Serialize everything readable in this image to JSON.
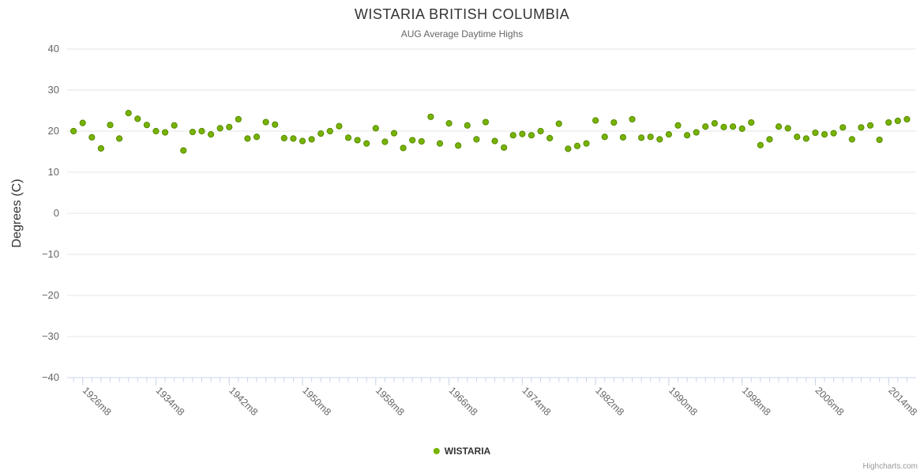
{
  "chart": {
    "title": "WISTARIA BRITISH COLUMBIA",
    "subtitle": "AUG Average Daytime Highs",
    "credit": "Highcharts.com"
  },
  "legend": {
    "label": "WISTARIA"
  },
  "chart_data": {
    "type": "scatter",
    "title": "WISTARIA BRITISH COLUMBIA",
    "subtitle": "AUG Average Daytime Highs",
    "xlabel": "",
    "ylabel": "Degrees (C)",
    "ylim": [
      -40,
      40
    ],
    "xlim": [
      1924.3,
      2017
    ],
    "grid": true,
    "legend_position": "bottom",
    "yticks": [
      40,
      30,
      20,
      10,
      0,
      -10,
      -20,
      -30,
      -40
    ],
    "ytick_labels": [
      "40",
      "30",
      "20",
      "10",
      "0",
      "−10",
      "−20",
      "−30",
      "−40"
    ],
    "xticks": [
      1926,
      1934,
      1942,
      1950,
      1958,
      1966,
      1974,
      1982,
      1990,
      1998,
      2006,
      2014
    ],
    "xtick_labels": [
      "1926m8",
      "1934m8",
      "1942m8",
      "1950m8",
      "1958m8",
      "1966m8",
      "1974m8",
      "1982m8",
      "1990m8",
      "1998m8",
      "2006m8",
      "2014m8"
    ],
    "colors": {
      "point": "#77b300",
      "point_stroke": "#568a00",
      "grid": "#e6e6e6",
      "axis": "#ccd6eb",
      "tick_label": "#666666"
    },
    "series": [
      {
        "name": "WISTARIA",
        "color": "#77b300",
        "x": [
          1925,
          1926,
          1927,
          1928,
          1929,
          1930,
          1931,
          1932,
          1933,
          1934,
          1935,
          1936,
          1937,
          1938,
          1939,
          1940,
          1941,
          1942,
          1943,
          1944,
          1945,
          1946,
          1947,
          1948,
          1949,
          1950,
          1951,
          1952,
          1953,
          1954,
          1955,
          1956,
          1957,
          1958,
          1959,
          1960,
          1961,
          1962,
          1963,
          1964,
          1965,
          1966,
          1967,
          1968,
          1969,
          1970,
          1971,
          1972,
          1973,
          1974,
          1975,
          1976,
          1977,
          1978,
          1979,
          1980,
          1981,
          1982,
          1983,
          1984,
          1985,
          1986,
          1987,
          1988,
          1989,
          1990,
          1991,
          1992,
          1993,
          1994,
          1995,
          1996,
          1997,
          1998,
          1999,
          2000,
          2001,
          2002,
          2003,
          2004,
          2005,
          2006,
          2007,
          2008,
          2009,
          2010,
          2011,
          2012,
          2013,
          2014,
          2015,
          2016
        ],
        "y": [
          20.0,
          22.0,
          18.5,
          15.8,
          21.5,
          18.2,
          24.4,
          23.0,
          21.5,
          20.0,
          19.7,
          21.4,
          15.3,
          19.8,
          20.0,
          19.2,
          20.7,
          21.0,
          22.9,
          18.2,
          18.6,
          22.2,
          21.6,
          18.3,
          18.2,
          17.6,
          18.0,
          19.4,
          20.0,
          21.2,
          18.4,
          17.8,
          17.0,
          20.7,
          17.4,
          19.5,
          15.9,
          17.8,
          17.5,
          23.5,
          17.0,
          21.9,
          16.5,
          21.4,
          18.0,
          22.2,
          17.6,
          16.0,
          19.0,
          19.3,
          19.0,
          20.0,
          18.3,
          21.8,
          15.7,
          16.4,
          17.0,
          22.6,
          18.6,
          22.1,
          18.5,
          22.9,
          18.4,
          18.6,
          18.0,
          19.2,
          21.4,
          19.0,
          19.7,
          21.1,
          21.9,
          21.0,
          21.1,
          20.6,
          22.1,
          16.6,
          18.0,
          21.1,
          20.7,
          18.6,
          18.2,
          19.6,
          19.2,
          19.5,
          20.9,
          18.0,
          20.9,
          21.4,
          17.9,
          22.1,
          22.5,
          22.9
        ]
      }
    ]
  }
}
